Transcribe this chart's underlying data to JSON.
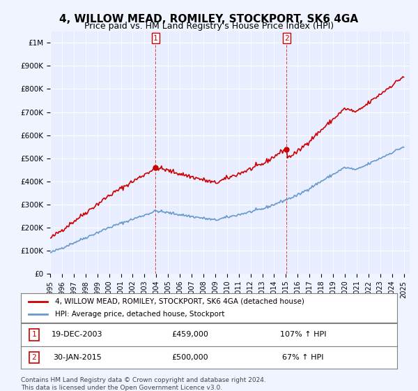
{
  "title": "4, WILLOW MEAD, ROMILEY, STOCKPORT, SK6 4GA",
  "subtitle": "Price paid vs. HM Land Registry's House Price Index (HPI)",
  "hpi_label": "HPI: Average price, detached house, Stockport",
  "property_label": "4, WILLOW MEAD, ROMILEY, STOCKPORT, SK6 4GA (detached house)",
  "sale1_date": "19-DEC-2003",
  "sale1_price": 459000,
  "sale1_hpi": "107% ↑ HPI",
  "sale2_date": "30-JAN-2015",
  "sale2_price": 500000,
  "sale2_hpi": "67% ↑ HPI",
  "footer": "Contains HM Land Registry data © Crown copyright and database right 2024.\nThis data is licensed under the Open Government Licence v3.0.",
  "red_color": "#cc0000",
  "blue_color": "#6699cc",
  "bg_color": "#f0f4ff",
  "plot_bg": "#e8eeff",
  "ylim": [
    0,
    1050000
  ],
  "yticks": [
    0,
    100000,
    200000,
    300000,
    400000,
    500000,
    600000,
    700000,
    800000,
    900000,
    1000000
  ]
}
